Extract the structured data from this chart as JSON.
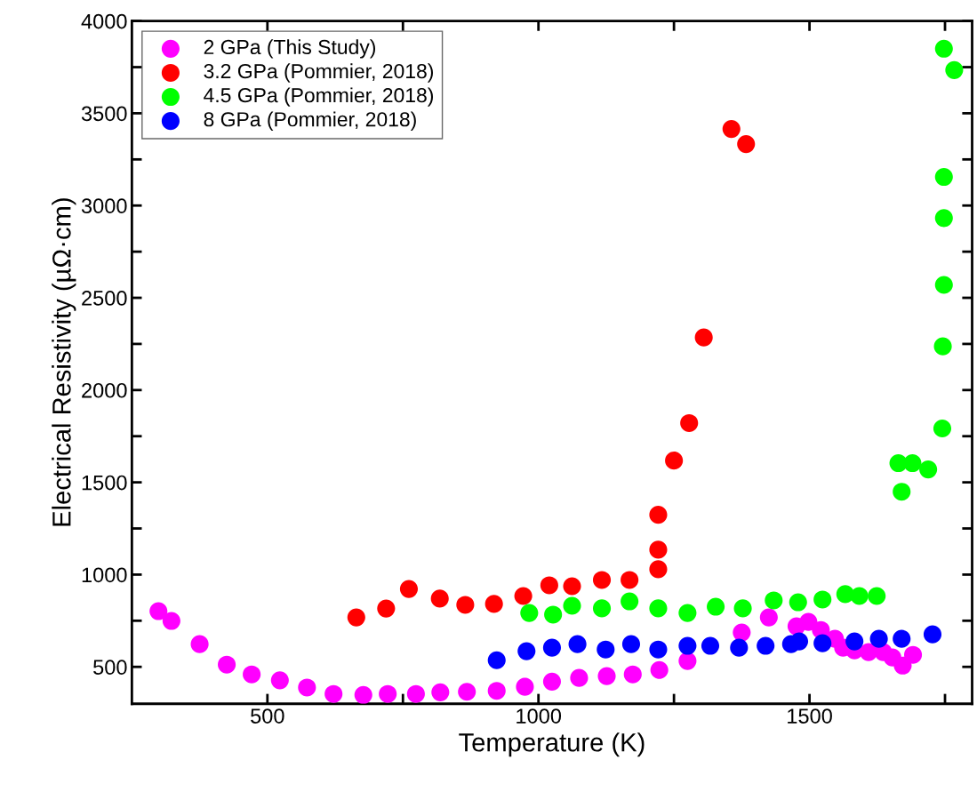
{
  "chart_data": {
    "type": "scatter",
    "xlabel": "Temperature (K)",
    "ylabel": "Electrical Resistivity (µΩ·cm)",
    "xlim": [
      250,
      1800
    ],
    "ylim": [
      300,
      4000
    ],
    "xticks": [
      500,
      {
        "value": 750,
        "label": null
      },
      1000,
      {
        "value": 1250,
        "label": null
      },
      1500,
      {
        "value": 1750,
        "label": null
      }
    ],
    "yticks": [
      500,
      {
        "value": 750,
        "label": null
      },
      1000,
      {
        "value": 1250,
        "label": null
      },
      1500,
      {
        "value": 1750,
        "label": null
      },
      2000,
      {
        "value": 2250,
        "label": null
      },
      2500,
      {
        "value": 2750,
        "label": null
      },
      3000,
      {
        "value": 3250,
        "label": null
      },
      3500,
      {
        "value": 3750,
        "label": null
      },
      4000
    ],
    "marker": "circle",
    "legend": "top left",
    "grid": false,
    "series": [
      {
        "name": "2 GPa (This Study)",
        "color": "#ff00ff",
        "x": [
          299,
          323,
          375,
          425,
          471,
          523,
          573,
          622,
          677,
          722,
          774,
          819,
          868,
          923,
          975,
          1025,
          1075,
          1126,
          1174,
          1223,
          1275,
          1322,
          1375,
          1425,
          1476,
          1498,
          1521,
          1547,
          1562,
          1583,
          1609,
          1636,
          1653,
          1672,
          1691
        ],
        "values": [
          802,
          749,
          623,
          512,
          459,
          427,
          388,
          353,
          348,
          353,
          353,
          362,
          365,
          370,
          392,
          420,
          440,
          450,
          459,
          483,
          532,
          null,
          686,
          768,
          720,
          744,
          700,
          652,
          604,
          589,
          580,
          580,
          551,
          507,
          565
        ]
      },
      {
        "name": "3.2 GPa (Pommier, 2018)",
        "color": "#ff0000",
        "x": [
          664,
          719,
          761,
          818,
          865,
          918,
          972,
          1020,
          1062,
          1117,
          1168,
          1221,
          1221,
          1221,
          1250,
          1278,
          1305,
          1356,
          1383
        ],
        "values": [
          768,
          816,
          922,
          870,
          836,
          841,
          884,
          942,
          937,
          971,
          971,
          1029,
          1135,
          1324,
          1618,
          1821,
          2285,
          3415,
          3333
        ]
      },
      {
        "name": "4.5 GPa (Pommier, 2018)",
        "color": "#00ff00",
        "x": [
          983,
          1027,
          1062,
          1117,
          1168,
          1221,
          1275,
          1327,
          1377,
          1434,
          1479,
          1524,
          1566,
          1592,
          1624,
          1664,
          1670,
          1690,
          1719,
          1745,
          1746,
          1748,
          1748,
          1748,
          1748,
          1767
        ],
        "values": [
          792,
          783,
          831,
          817,
          855,
          817,
          792,
          826,
          817,
          860,
          850,
          865,
          894,
          884,
          884,
          1604,
          1449,
          1604,
          1570,
          1792,
          2237,
          2570,
          2932,
          3155,
          3850,
          3734
        ]
      },
      {
        "name": "8 GPa (Pommier, 2018)",
        "color": "#0000ff",
        "x": [
          923,
          978,
          1025,
          1072,
          1124,
          1171,
          1221,
          1275,
          1317,
          1370,
          1419,
          1466,
          1481,
          1524,
          1583,
          1628,
          1670,
          1727
        ],
        "values": [
          536,
          585,
          604,
          623,
          594,
          623,
          594,
          614,
          614,
          604,
          614,
          623,
          638,
          628,
          638,
          652,
          652,
          676
        ]
      }
    ]
  }
}
